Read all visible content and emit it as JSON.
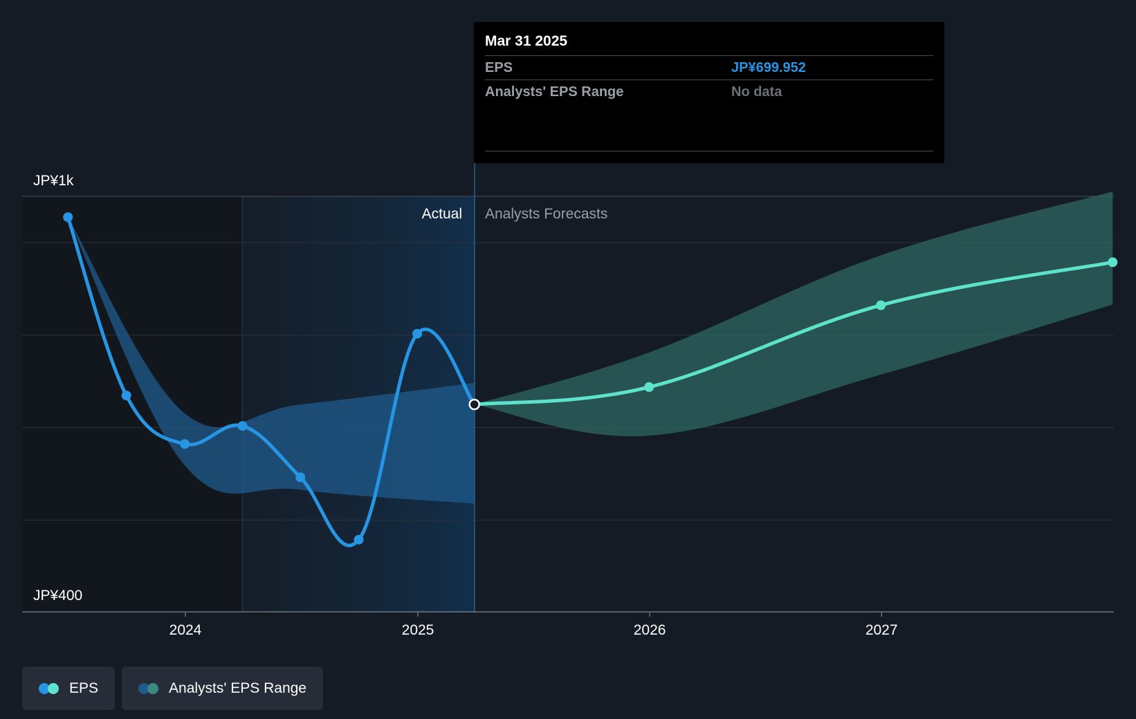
{
  "tooltip": {
    "date": "Mar 31 2025",
    "rows": [
      {
        "label": "EPS",
        "value": "JP¥699.952",
        "value_color": "#2795e3"
      },
      {
        "label": "Analysts' EPS Range",
        "value": "No data",
        "value_color": "#6b7079"
      }
    ]
  },
  "legend": [
    {
      "label": "EPS",
      "colors": [
        "#2795e3",
        "#5de2cc"
      ]
    },
    {
      "label": "Analysts' EPS Range",
      "colors": [
        "#1f5b8c",
        "#3b8a82"
      ]
    }
  ],
  "chart_data": {
    "type": "line",
    "y_axis_labels": {
      "top": "JP¥1k",
      "bottom": "JP¥400"
    },
    "ylim": [
      400,
      1000
    ],
    "x_ticks": [
      "2024",
      "2025",
      "2026",
      "2027"
    ],
    "region_labels": {
      "actual": "Actual",
      "forecast": "Analysts Forecasts"
    },
    "divider_date": "2025-03-31",
    "grid": true,
    "series": [
      {
        "name": "EPS",
        "color": "#2795e3",
        "points": [
          {
            "date": "2023-06-30",
            "value": 970
          },
          {
            "date": "2023-09-30",
            "value": 713
          },
          {
            "date": "2023-12-31",
            "value": 643
          },
          {
            "date": "2024-03-31",
            "value": 669
          },
          {
            "date": "2024-06-30",
            "value": 595
          },
          {
            "date": "2024-09-30",
            "value": 505
          },
          {
            "date": "2024-12-31",
            "value": 802
          },
          {
            "date": "2025-03-31",
            "value": 699.952
          }
        ]
      },
      {
        "name": "EPS",
        "color": "#5de2cc",
        "points": [
          {
            "date": "2025-03-31",
            "value": 699.952
          },
          {
            "date": "2025-12-31",
            "value": 725
          },
          {
            "date": "2026-12-31",
            "value": 843
          },
          {
            "date": "2027-12-31",
            "value": 905
          }
        ]
      }
    ],
    "ranges": [
      {
        "name": "Analysts' EPS Range",
        "color": "#1f5b8c",
        "upper": [
          {
            "date": "2023-06-30",
            "value": 970
          },
          {
            "date": "2023-12-31",
            "value": 687
          },
          {
            "date": "2024-06-30",
            "value": 700
          },
          {
            "date": "2025-03-31",
            "value": 731
          }
        ],
        "lower": [
          {
            "date": "2023-06-30",
            "value": 970
          },
          {
            "date": "2023-12-31",
            "value": 612
          },
          {
            "date": "2024-06-30",
            "value": 577
          },
          {
            "date": "2025-03-31",
            "value": 557
          }
        ]
      },
      {
        "name": "Analysts' EPS Range",
        "color": "#2f6b66",
        "upper": [
          {
            "date": "2025-03-31",
            "value": 699.952
          },
          {
            "date": "2025-12-31",
            "value": 775
          },
          {
            "date": "2026-12-31",
            "value": 915
          },
          {
            "date": "2027-12-31",
            "value": 1007
          }
        ],
        "lower": [
          {
            "date": "2025-03-31",
            "value": 699.952
          },
          {
            "date": "2025-12-31",
            "value": 655
          },
          {
            "date": "2026-12-31",
            "value": 743
          },
          {
            "date": "2027-12-31",
            "value": 844
          }
        ]
      }
    ]
  }
}
